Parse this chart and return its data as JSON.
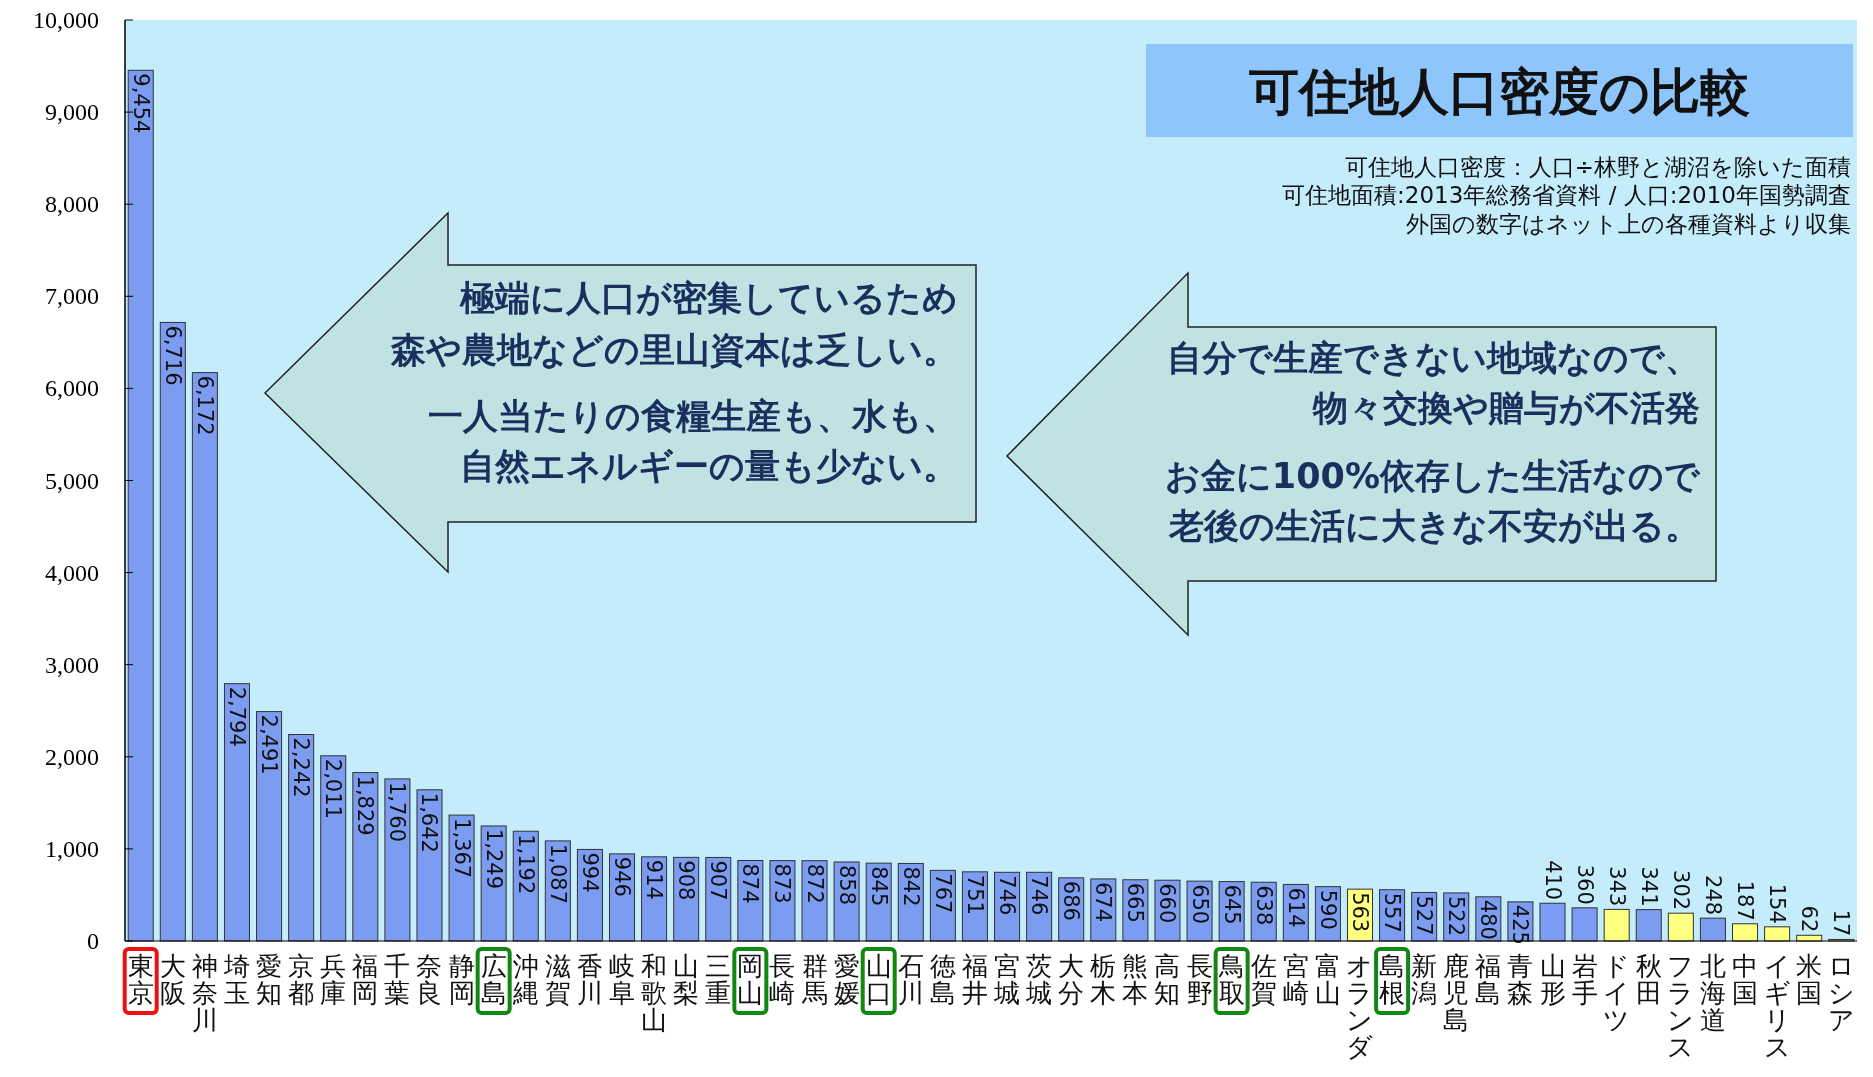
{
  "chart_data": {
    "type": "bar",
    "title": "可住地人口密度の比較",
    "categories": [
      "東京",
      "大阪",
      "神奈川",
      "埼玉",
      "愛知",
      "京都",
      "兵庫",
      "福岡",
      "千葉",
      "奈良",
      "静岡",
      "広島",
      "沖縄",
      "滋賀",
      "香川",
      "岐阜",
      "和歌山",
      "山梨",
      "三重",
      "岡山",
      "長崎",
      "群馬",
      "愛媛",
      "山口",
      "石川",
      "徳島",
      "福井",
      "宮城",
      "茨城",
      "大分",
      "栃木",
      "熊本",
      "高知",
      "長野",
      "鳥取",
      "佐賀",
      "宮崎",
      "富山",
      "オランダ",
      "島根",
      "新潟",
      "鹿児島",
      "福島",
      "青森",
      "山形",
      "岩手",
      "ドイツ",
      "秋田",
      "フランス",
      "北海道",
      "中国",
      "イギリス",
      "米国",
      "ロシア"
    ],
    "values": [
      9454,
      6716,
      6172,
      2794,
      2491,
      2242,
      2011,
      1829,
      1760,
      1642,
      1367,
      1249,
      1192,
      1087,
      994,
      946,
      914,
      908,
      907,
      874,
      873,
      872,
      858,
      845,
      842,
      767,
      751,
      746,
      746,
      686,
      674,
      665,
      660,
      650,
      645,
      638,
      614,
      590,
      563,
      557,
      527,
      522,
      480,
      425,
      410,
      360,
      343,
      341,
      302,
      248,
      187,
      154,
      62,
      17
    ],
    "colors": [
      "#7b9cf0",
      "#7b9cf0",
      "#7b9cf0",
      "#7b9cf0",
      "#7b9cf0",
      "#7b9cf0",
      "#7b9cf0",
      "#7b9cf0",
      "#7b9cf0",
      "#7b9cf0",
      "#7b9cf0",
      "#7b9cf0",
      "#7b9cf0",
      "#7b9cf0",
      "#7b9cf0",
      "#7b9cf0",
      "#7b9cf0",
      "#7b9cf0",
      "#7b9cf0",
      "#7b9cf0",
      "#7b9cf0",
      "#7b9cf0",
      "#7b9cf0",
      "#7b9cf0",
      "#7b9cf0",
      "#7b9cf0",
      "#7b9cf0",
      "#7b9cf0",
      "#7b9cf0",
      "#7b9cf0",
      "#7b9cf0",
      "#7b9cf0",
      "#7b9cf0",
      "#7b9cf0",
      "#7b9cf0",
      "#7b9cf0",
      "#7b9cf0",
      "#7b9cf0",
      "#ffff80",
      "#7b9cf0",
      "#7b9cf0",
      "#7b9cf0",
      "#7b9cf0",
      "#7b9cf0",
      "#7b9cf0",
      "#7b9cf0",
      "#ffff80",
      "#7b9cf0",
      "#ffff80",
      "#7b9cf0",
      "#ffff80",
      "#ffff80",
      "#ffff80",
      "#ffff80"
    ],
    "ylim": [
      0,
      10000
    ],
    "yticks": [
      0,
      {
        "value": 1000,
        "label": "1,000"
      },
      {
        "value": 2000,
        "label": "2,000"
      },
      {
        "value": 3000,
        "label": "3,000"
      },
      {
        "value": 4000,
        "label": "4,000"
      },
      {
        "value": 5000,
        "label": "5,000"
      },
      {
        "value": 6000,
        "label": "6,000"
      },
      {
        "value": 7000,
        "label": "7,000"
      },
      {
        "value": 8000,
        "label": "8,000"
      },
      {
        "value": 9000,
        "label": "9,000"
      },
      {
        "value": 10000,
        "label": "10,000"
      }
    ],
    "value_labels": [
      "9,454",
      "6,716",
      "6,172",
      "2,794",
      "2,491",
      "2,242",
      "2,011",
      "1,829",
      "1,760",
      "1,642",
      "1,367",
      "1,249",
      "1,192",
      "1,087",
      "994",
      "946",
      "914",
      "908",
      "907",
      "874",
      "873",
      "872",
      "858",
      "845",
      "842",
      "767",
      "751",
      "746",
      "746",
      "686",
      "674",
      "665",
      "660",
      "650",
      "645",
      "638",
      "614",
      "590",
      "563",
      "557",
      "527",
      "522",
      "480",
      "425",
      "410",
      "360",
      "343",
      "341",
      "302",
      "248",
      "187",
      "154",
      "62",
      "17"
    ],
    "grid": false,
    "annotations": [
      "可住地人口密度：人口÷林野と湖沼を除いた面積",
      "可住地面積:2013年総務省資料 / 人口:2010年国勢調査",
      "外国の数字はネット上の各種資料より収集",
      "極端に人口が密集しているため",
      "森や農地などの里山資本は乏しい。",
      "一人当たりの食糧生産も、水も、",
      "自然エネルギーの量も少ない。",
      "自分で生産できない地域なので、",
      "物々交換や贈与が不活発",
      "お金に100%依存した生活なので",
      "老後の生活に大きな不安が出る。"
    ]
  }
}
